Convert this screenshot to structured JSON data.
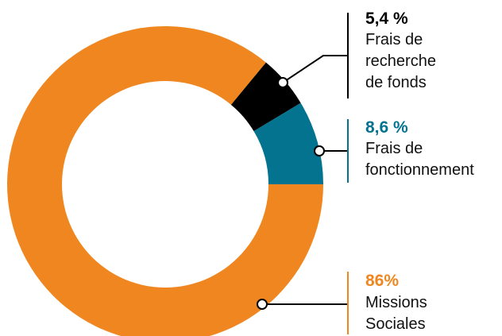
{
  "chart_data": {
    "type": "pie",
    "slices": [
      {
        "value_label": "5,4 %",
        "value": 5.4,
        "color": "#000000",
        "label_color": "#000000",
        "name_lines": [
          "Frais de",
          "recherche",
          "de fonds"
        ]
      },
      {
        "value_label": "8,6 %",
        "value": 8.6,
        "color": "#04738F",
        "label_color": "#04738F",
        "name_lines": [
          "Frais de",
          "fonctionnement"
        ]
      },
      {
        "value_label": "86%",
        "value": 86,
        "color": "#F0861F",
        "label_color": "#F0861F",
        "name_lines": [
          "Missions",
          "Sociales"
        ]
      }
    ],
    "legend": "right"
  }
}
